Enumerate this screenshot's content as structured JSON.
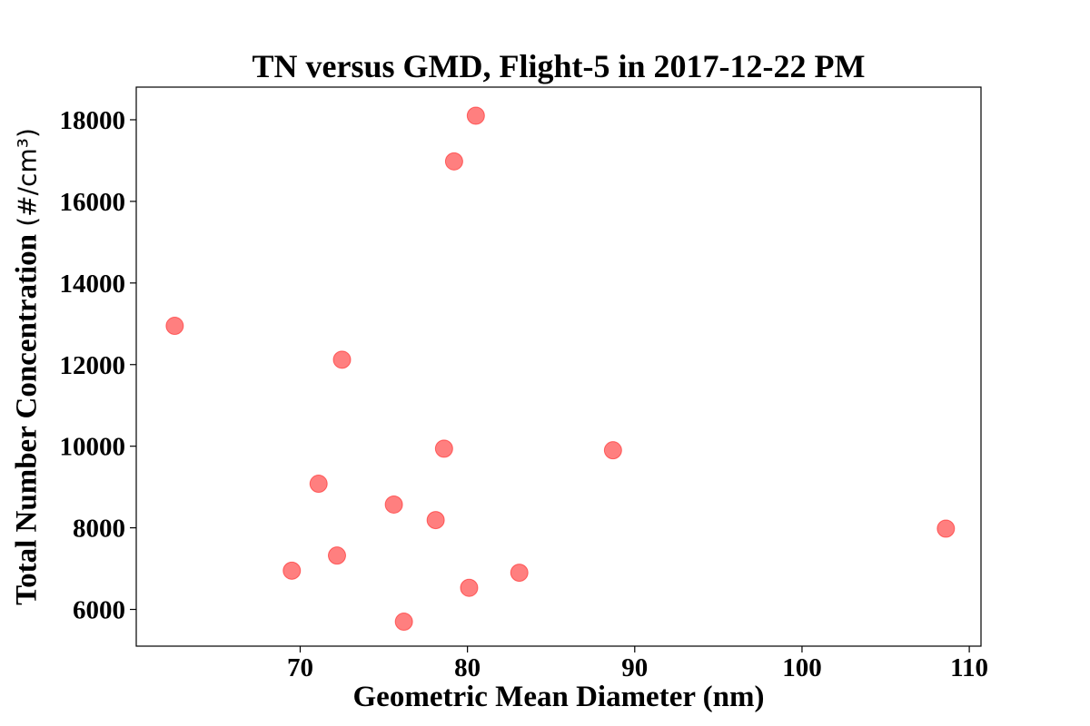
{
  "chart_data": {
    "type": "scatter",
    "title": "TN versus GMD, Flight-5 in 2017-12-22 PM",
    "xlabel": "Geometric Mean Diameter (nm)",
    "ylabel_text": "Total Number Concentration",
    "ylabel_unit": "(#/cm³)",
    "xlim": [
      60.2,
      110.7
    ],
    "ylim": [
      5100,
      18800
    ],
    "x_ticks": [
      70,
      80,
      90,
      100,
      110
    ],
    "y_ticks": [
      6000,
      8000,
      10000,
      12000,
      14000,
      16000,
      18000
    ],
    "x_tick_labels": [
      "70",
      "80",
      "90",
      "100",
      "110"
    ],
    "y_tick_labels": [
      "6000",
      "8000",
      "10000",
      "12000",
      "14000",
      "16000",
      "18000"
    ],
    "grid": false,
    "marker_color": "#ff0000",
    "marker_alpha": 0.5,
    "points": [
      {
        "x": 62.5,
        "y": 12950
      },
      {
        "x": 69.5,
        "y": 6950
      },
      {
        "x": 71.1,
        "y": 9080
      },
      {
        "x": 72.2,
        "y": 7320
      },
      {
        "x": 72.5,
        "y": 12120
      },
      {
        "x": 75.6,
        "y": 8570
      },
      {
        "x": 76.2,
        "y": 5700
      },
      {
        "x": 78.1,
        "y": 8190
      },
      {
        "x": 78.6,
        "y": 9940
      },
      {
        "x": 79.2,
        "y": 16980
      },
      {
        "x": 80.1,
        "y": 6530
      },
      {
        "x": 80.5,
        "y": 18100
      },
      {
        "x": 83.1,
        "y": 6900
      },
      {
        "x": 88.7,
        "y": 9900
      },
      {
        "x": 108.6,
        "y": 7980
      }
    ]
  }
}
